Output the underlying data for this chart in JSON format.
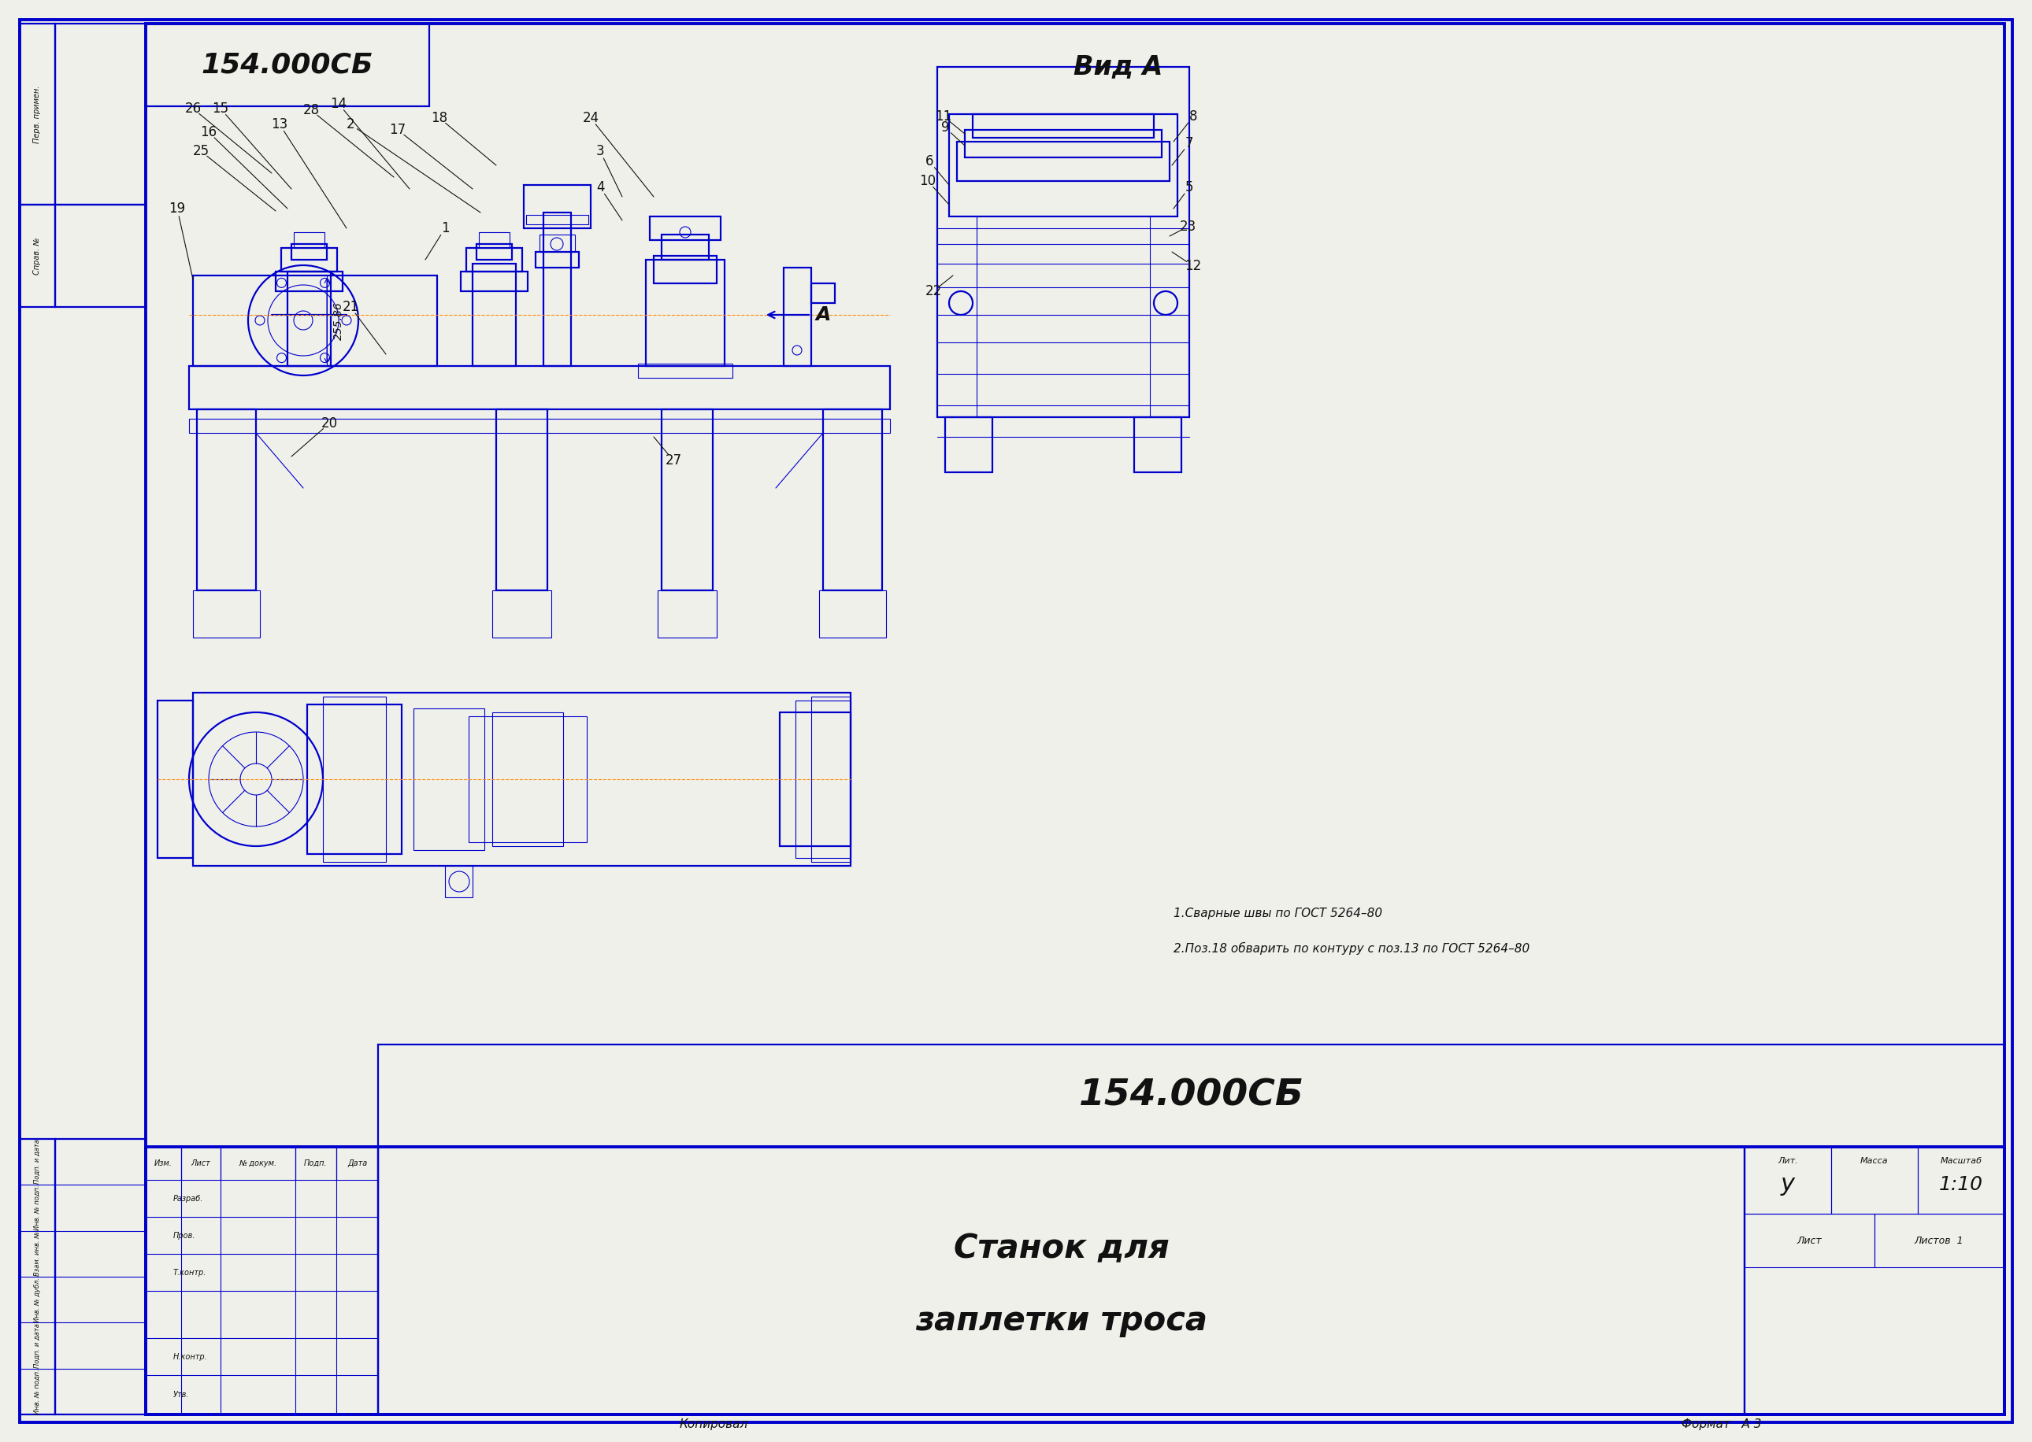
{
  "bg_color": "#f0f0eb",
  "border_color": "#0000cc",
  "line_color": "#0000cc",
  "orange_color": "#ff8800",
  "black_color": "#111111",
  "lw_thin": 0.8,
  "lw_mid": 1.6,
  "lw_thick": 2.8,
  "doc_number": "154.000СБ",
  "title_line1": "Станок для",
  "title_line2": "заплетки троса",
  "scale_text": "1:10",
  "lit_text": "у",
  "sheet_text": "Лист",
  "sheets_text": "Листов  1",
  "lit_label": "Лит.",
  "mass_label": "Масса",
  "scale_label": "Масштаб",
  "view_a_label": "Вид А",
  "arrow_a_label": "А",
  "note1": "1.Сварные швы по ГОСТ 5264–80",
  "note2": "2.Поз.18 обварить по контуру с поз.13 по ГОСТ 5264–80",
  "copy_text": "Копировал",
  "format_text": "Формат   А 3",
  "izm_label": "Изм.",
  "list_label": "Лист",
  "dok_label": "№ докум.",
  "podp_label": "Подп.",
  "data_label": "Дата",
  "razrab_label": "Разраб.",
  "prob_label": "Пров.",
  "tkont_label": "Т.контр.",
  "nkont_label": "Н.контр.",
  "utv_label": "Утв.",
  "perv_label": "Перв. примен.",
  "sprav_label": "Справ. №",
  "podp_data_label": "Подп. и дата",
  "inv_podp_label": "Инв. № подп.",
  "vzam_inv_label": "Взам. инв. №",
  "inv_dubl_label": "Инв. № дубл.",
  "dim_text": "255.86"
}
